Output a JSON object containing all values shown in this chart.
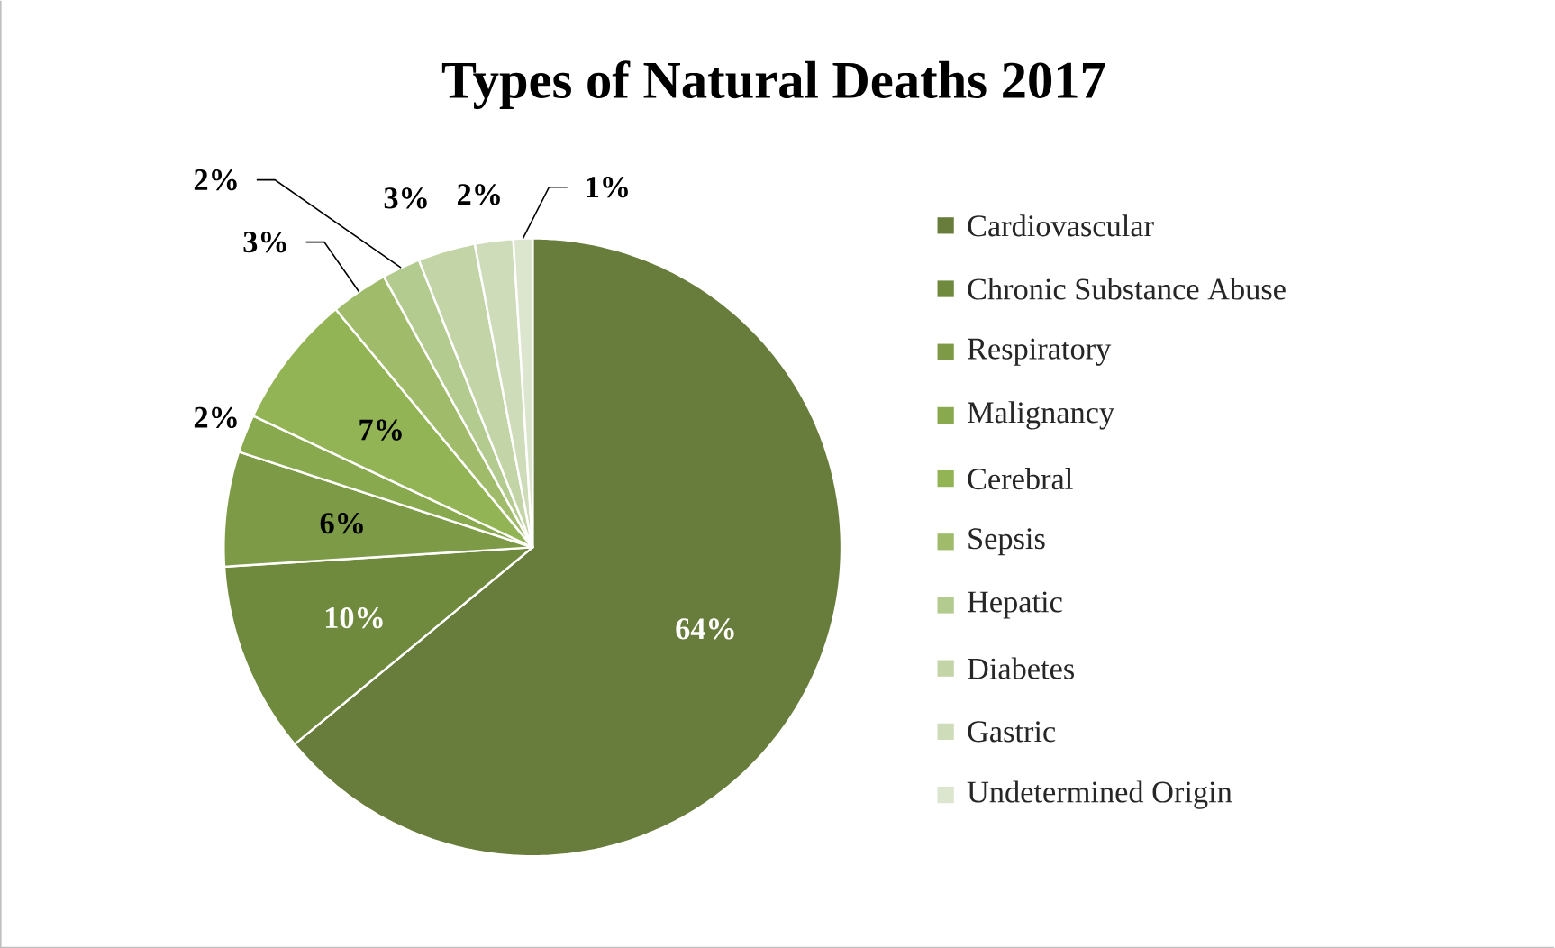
{
  "chart_data": {
    "type": "pie",
    "title": "Types of Natural Deaths 2017",
    "categories": [
      "Cardiovascular",
      "Chronic Substance Abuse",
      "Respiratory",
      "Malignancy",
      "Cerebral",
      "Sepsis",
      "Hepatic",
      "Diabetes",
      "Gastric",
      "Undetermined Origin"
    ],
    "values": [
      64,
      10,
      6,
      2,
      7,
      3,
      2,
      3,
      2,
      1
    ],
    "colors": [
      "#687d3b",
      "#6f8a3d",
      "#7d9a46",
      "#88a94d",
      "#93b455",
      "#a0bc6a",
      "#b3cb8f",
      "#c3d4a7",
      "#cfdcba",
      "#dce5cd"
    ],
    "value_labels": [
      "64%",
      "10%",
      "6%",
      "2%",
      "7%",
      "3%",
      "2%",
      "3%",
      "2%",
      "1%"
    ],
    "legend": "right"
  }
}
